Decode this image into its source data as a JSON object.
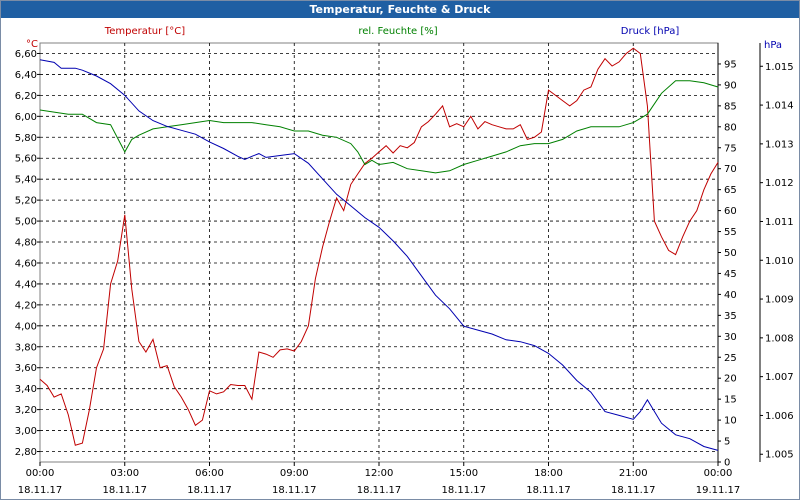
{
  "window": {
    "title": "Temperatur, Feuchte & Druck"
  },
  "chart_data": {
    "type": "line",
    "title": "Temperatur, Feuchte & Druck",
    "grid": true,
    "x_range": [
      "18.11.17 00:00",
      "19.11.17 00:00"
    ],
    "x_ticks": [
      {
        "time": "00:00",
        "date": "18.11.17"
      },
      {
        "time": "03:00",
        "date": "18.11.17"
      },
      {
        "time": "06:00",
        "date": "18.11.17"
      },
      {
        "time": "09:00",
        "date": "18.11.17"
      },
      {
        "time": "12:00",
        "date": "18.11.17"
      },
      {
        "time": "15:00",
        "date": "18.11.17"
      },
      {
        "time": "18:00",
        "date": "18.11.17"
      },
      {
        "time": "21:00",
        "date": "18.11.17"
      },
      {
        "time": "00:00",
        "date": "19.11.17"
      }
    ],
    "axes": {
      "temperature": {
        "unit": "°C",
        "label": "Temperatur [°C]",
        "color": "#c00000",
        "side": "left",
        "range": [
          2.7,
          6.7
        ],
        "ticks": [
          "2,80",
          "3,00",
          "3,20",
          "3,40",
          "3,60",
          "3,80",
          "4,00",
          "4,20",
          "4,40",
          "4,60",
          "4,80",
          "5,00",
          "5,20",
          "5,40",
          "5,60",
          "5,80",
          "6,00",
          "6,20",
          "6,40",
          "6,60"
        ]
      },
      "humidity": {
        "unit": "%",
        "label": "rel. Feuchte [%]",
        "color": "#008000",
        "side": "right",
        "range": [
          0,
          100
        ],
        "ticks": [
          "0",
          "5",
          "10",
          "15",
          "20",
          "25",
          "30",
          "35",
          "40",
          "45",
          "50",
          "55",
          "60",
          "65",
          "70",
          "75",
          "80",
          "85",
          "90",
          "95"
        ]
      },
      "pressure": {
        "unit": "hPa",
        "label": "Druck [hPa]",
        "color": "#0000b0",
        "side": "right",
        "range": [
          1.0048,
          1.0156
        ],
        "ticks": [
          "1.005",
          "1.006",
          "1.007",
          "1.008",
          "1.009",
          "1.010",
          "1.011",
          "1.012",
          "1.013",
          "1.014",
          "1.015"
        ]
      }
    },
    "series": [
      {
        "name": "Temperatur [°C]",
        "axis": "temperature",
        "color": "#c00000",
        "points": [
          [
            0,
            3.49
          ],
          [
            0.25,
            3.43
          ],
          [
            0.5,
            3.32
          ],
          [
            0.75,
            3.35
          ],
          [
            1,
            3.15
          ],
          [
            1.25,
            2.86
          ],
          [
            1.5,
            2.88
          ],
          [
            1.75,
            3.2
          ],
          [
            2,
            3.6
          ],
          [
            2.25,
            3.78
          ],
          [
            2.5,
            4.4
          ],
          [
            2.75,
            4.62
          ],
          [
            3,
            5.06
          ],
          [
            3.25,
            4.35
          ],
          [
            3.5,
            3.85
          ],
          [
            3.75,
            3.75
          ],
          [
            4,
            3.87
          ],
          [
            4.25,
            3.6
          ],
          [
            4.5,
            3.62
          ],
          [
            4.75,
            3.42
          ],
          [
            5,
            3.32
          ],
          [
            5.25,
            3.2
          ],
          [
            5.5,
            3.05
          ],
          [
            5.75,
            3.1
          ],
          [
            6,
            3.38
          ],
          [
            6.25,
            3.35
          ],
          [
            6.5,
            3.37
          ],
          [
            6.75,
            3.44
          ],
          [
            7,
            3.43
          ],
          [
            7.25,
            3.43
          ],
          [
            7.5,
            3.3
          ],
          [
            7.75,
            3.75
          ],
          [
            8,
            3.73
          ],
          [
            8.25,
            3.7
          ],
          [
            8.5,
            3.77
          ],
          [
            8.75,
            3.78
          ],
          [
            9,
            3.76
          ],
          [
            9.25,
            3.85
          ],
          [
            9.5,
            4.0
          ],
          [
            9.75,
            4.45
          ],
          [
            10,
            4.75
          ],
          [
            10.25,
            5.0
          ],
          [
            10.5,
            5.22
          ],
          [
            10.75,
            5.1
          ],
          [
            11,
            5.35
          ],
          [
            11.25,
            5.45
          ],
          [
            11.5,
            5.55
          ],
          [
            11.75,
            5.6
          ],
          [
            12,
            5.66
          ],
          [
            12.25,
            5.72
          ],
          [
            12.5,
            5.65
          ],
          [
            12.75,
            5.72
          ],
          [
            13,
            5.7
          ],
          [
            13.25,
            5.75
          ],
          [
            13.5,
            5.9
          ],
          [
            13.75,
            5.95
          ],
          [
            14,
            6.02
          ],
          [
            14.25,
            6.1
          ],
          [
            14.5,
            5.9
          ],
          [
            14.75,
            5.93
          ],
          [
            15,
            5.9
          ],
          [
            15.25,
            6.0
          ],
          [
            15.5,
            5.88
          ],
          [
            15.75,
            5.95
          ],
          [
            16,
            5.92
          ],
          [
            16.25,
            5.9
          ],
          [
            16.5,
            5.88
          ],
          [
            16.75,
            5.88
          ],
          [
            17,
            5.92
          ],
          [
            17.25,
            5.78
          ],
          [
            17.5,
            5.8
          ],
          [
            17.75,
            5.85
          ],
          [
            18,
            6.25
          ],
          [
            18.25,
            6.2
          ],
          [
            18.5,
            6.15
          ],
          [
            18.75,
            6.1
          ],
          [
            19,
            6.15
          ],
          [
            19.25,
            6.25
          ],
          [
            19.5,
            6.28
          ],
          [
            19.75,
            6.45
          ],
          [
            20,
            6.55
          ],
          [
            20.25,
            6.48
          ],
          [
            20.5,
            6.52
          ],
          [
            20.75,
            6.6
          ],
          [
            21,
            6.65
          ],
          [
            21.25,
            6.6
          ],
          [
            21.5,
            6.1
          ],
          [
            21.75,
            5.0
          ],
          [
            22,
            4.85
          ],
          [
            22.25,
            4.72
          ],
          [
            22.5,
            4.68
          ],
          [
            22.75,
            4.85
          ],
          [
            23,
            5.0
          ],
          [
            23.25,
            5.1
          ],
          [
            23.5,
            5.3
          ],
          [
            23.75,
            5.45
          ],
          [
            24,
            5.56
          ]
        ]
      },
      {
        "name": "rel. Feuchte [%]",
        "axis": "humidity",
        "color": "#008000",
        "points": [
          [
            0,
            84
          ],
          [
            0.5,
            83.5
          ],
          [
            1,
            83
          ],
          [
            1.5,
            83
          ],
          [
            2,
            81
          ],
          [
            2.5,
            80.5
          ],
          [
            3,
            74
          ],
          [
            3.25,
            77
          ],
          [
            3.5,
            78
          ],
          [
            4,
            79.5
          ],
          [
            4.5,
            80
          ],
          [
            5,
            80.5
          ],
          [
            5.5,
            81
          ],
          [
            6,
            81.5
          ],
          [
            6.5,
            81
          ],
          [
            7,
            81
          ],
          [
            7.5,
            81
          ],
          [
            8,
            80.5
          ],
          [
            8.5,
            80
          ],
          [
            9,
            79
          ],
          [
            9.5,
            79
          ],
          [
            10,
            78
          ],
          [
            10.5,
            77.5
          ],
          [
            11,
            76
          ],
          [
            11.25,
            74
          ],
          [
            11.5,
            71
          ],
          [
            11.75,
            72
          ],
          [
            12,
            71
          ],
          [
            12.5,
            71.5
          ],
          [
            13,
            70
          ],
          [
            13.5,
            69.5
          ],
          [
            14,
            69
          ],
          [
            14.5,
            69.5
          ],
          [
            15,
            71
          ],
          [
            15.5,
            72
          ],
          [
            16,
            73
          ],
          [
            16.5,
            74
          ],
          [
            17,
            75.5
          ],
          [
            17.5,
            76
          ],
          [
            18,
            76
          ],
          [
            18.5,
            77
          ],
          [
            19,
            79
          ],
          [
            19.5,
            80
          ],
          [
            20,
            80
          ],
          [
            20.5,
            80
          ],
          [
            21,
            81
          ],
          [
            21.5,
            83
          ],
          [
            22,
            88
          ],
          [
            22.5,
            91
          ],
          [
            23,
            91
          ],
          [
            23.5,
            90.5
          ],
          [
            24,
            89.5
          ]
        ]
      },
      {
        "name": "Druck [hPa]",
        "axis": "pressure",
        "color": "#0000b0",
        "points": [
          [
            0,
            1.01517
          ],
          [
            0.5,
            1.0151
          ],
          [
            0.75,
            1.01495
          ],
          [
            1.25,
            1.01495
          ],
          [
            1.5,
            1.0149
          ],
          [
            2,
            1.01475
          ],
          [
            2.5,
            1.01455
          ],
          [
            3,
            1.01425
          ],
          [
            3.5,
            1.01385
          ],
          [
            4,
            1.0136
          ],
          [
            4.5,
            1.01345
          ],
          [
            5,
            1.01335
          ],
          [
            5.5,
            1.01325
          ],
          [
            6,
            1.01305
          ],
          [
            6.5,
            1.01288
          ],
          [
            7,
            1.01268
          ],
          [
            7.25,
            1.0126
          ],
          [
            7.5,
            1.01268
          ],
          [
            7.75,
            1.01275
          ],
          [
            8,
            1.01265
          ],
          [
            8.5,
            1.0127
          ],
          [
            9,
            1.01275
          ],
          [
            9.5,
            1.0125
          ],
          [
            10,
            1.0121
          ],
          [
            10.5,
            1.0117
          ],
          [
            11,
            1.0114
          ],
          [
            11.5,
            1.0111
          ],
          [
            12,
            1.01085
          ],
          [
            12.5,
            1.0105
          ],
          [
            13,
            1.0101
          ],
          [
            13.5,
            1.0096
          ],
          [
            14,
            1.0091
          ],
          [
            14.5,
            1.00875
          ],
          [
            15,
            1.0083
          ],
          [
            15.5,
            1.0082
          ],
          [
            16,
            1.0081
          ],
          [
            16.5,
            1.00795
          ],
          [
            17,
            1.0079
          ],
          [
            17.5,
            1.0078
          ],
          [
            18,
            1.0076
          ],
          [
            18.5,
            1.0073
          ],
          [
            19,
            1.0069
          ],
          [
            19.5,
            1.0066
          ],
          [
            20,
            1.0061
          ],
          [
            20.5,
            1.006
          ],
          [
            21,
            1.0059
          ],
          [
            21.25,
            1.0061
          ],
          [
            21.5,
            1.0064
          ],
          [
            22,
            1.0058
          ],
          [
            22.5,
            1.0055
          ],
          [
            23,
            1.0054
          ],
          [
            23.5,
            1.0052
          ],
          [
            24,
            1.0051
          ]
        ]
      }
    ]
  }
}
